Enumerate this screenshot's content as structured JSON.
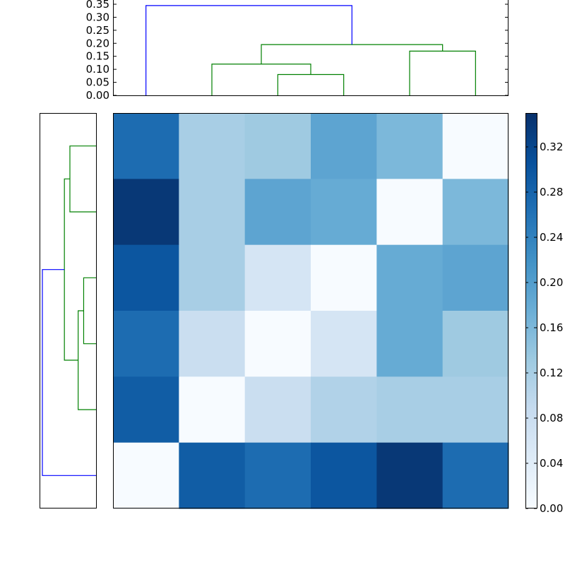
{
  "chart_data": [
    {
      "type": "heatmap",
      "rows": 6,
      "cols": 6,
      "colormap": "Blues",
      "values": [
        [
          0.27,
          0.12,
          0.13,
          0.19,
          0.16,
          0.0
        ],
        [
          0.34,
          0.12,
          0.19,
          0.18,
          0.0,
          0.16
        ],
        [
          0.3,
          0.12,
          0.06,
          0.0,
          0.18,
          0.19
        ],
        [
          0.27,
          0.08,
          0.0,
          0.06,
          0.18,
          0.13
        ],
        [
          0.29,
          0.0,
          0.08,
          0.11,
          0.12,
          0.12
        ],
        [
          0.0,
          0.29,
          0.27,
          0.3,
          0.34,
          0.27
        ]
      ],
      "colorbar": {
        "ylim": [
          0,
          0.35
        ],
        "ticks": [
          "0.00",
          "0.04",
          "0.08",
          "0.12",
          "0.16",
          "0.20",
          "0.24",
          "0.28",
          "0.32"
        ],
        "tick_values": [
          0,
          0.04,
          0.08,
          0.12,
          0.16,
          0.2,
          0.24,
          0.28,
          0.32
        ]
      },
      "grid": false
    },
    {
      "type": "line",
      "subtype": "dendrogram",
      "orientation": "top",
      "ylim": [
        0,
        0.35
      ],
      "yticks": [
        "0.00",
        "0.05",
        "0.10",
        "0.15",
        "0.20",
        "0.25",
        "0.30",
        "0.35"
      ],
      "ytick_values": [
        0,
        0.05,
        0.1,
        0.15,
        0.2,
        0.25,
        0.3,
        0.35
      ],
      "leaves": 6,
      "links": [
        {
          "left": 3.0,
          "right": 4.0,
          "left_height": 0.0,
          "right_height": 0.0,
          "height": 0.08,
          "color": "#008000"
        },
        {
          "left": 2.0,
          "right": 3.5,
          "left_height": 0.0,
          "right_height": 0.08,
          "height": 0.12,
          "color": "#008000"
        },
        {
          "left": 5.0,
          "right": 6.0,
          "left_height": 0.0,
          "right_height": 0.0,
          "height": 0.17,
          "color": "#008000"
        },
        {
          "left": 2.75,
          "right": 5.5,
          "left_height": 0.12,
          "right_height": 0.17,
          "height": 0.195,
          "color": "#008000"
        },
        {
          "left": 1.0,
          "right": 4.125,
          "left_height": 0.0,
          "right_height": 0.195,
          "height": 0.345,
          "color": "#0000ff"
        }
      ]
    },
    {
      "type": "line",
      "subtype": "dendrogram",
      "orientation": "left",
      "leaves": 6,
      "links": [
        {
          "left": 0.5,
          "right": 1.5,
          "left_height": 0.0,
          "right_height": 0.0,
          "height": 0.095,
          "color": "#008000"
        },
        {
          "left": 2.5,
          "right": 3.5,
          "left_height": 0.0,
          "right_height": 0.0,
          "height": 0.045,
          "color": "#008000"
        },
        {
          "left": 3.0,
          "right": 4.5,
          "left_height": 0.045,
          "right_height": 0.0,
          "height": 0.065,
          "color": "#008000"
        },
        {
          "left": 1.0,
          "right": 3.75,
          "left_height": 0.095,
          "right_height": 0.065,
          "height": 0.115,
          "color": "#008000"
        },
        {
          "left": 2.375,
          "right": 5.5,
          "left_height": 0.115,
          "right_height": 0.0,
          "height": 0.195,
          "color": "#0000ff"
        }
      ],
      "xlim": [
        0,
        0.2
      ]
    }
  ]
}
